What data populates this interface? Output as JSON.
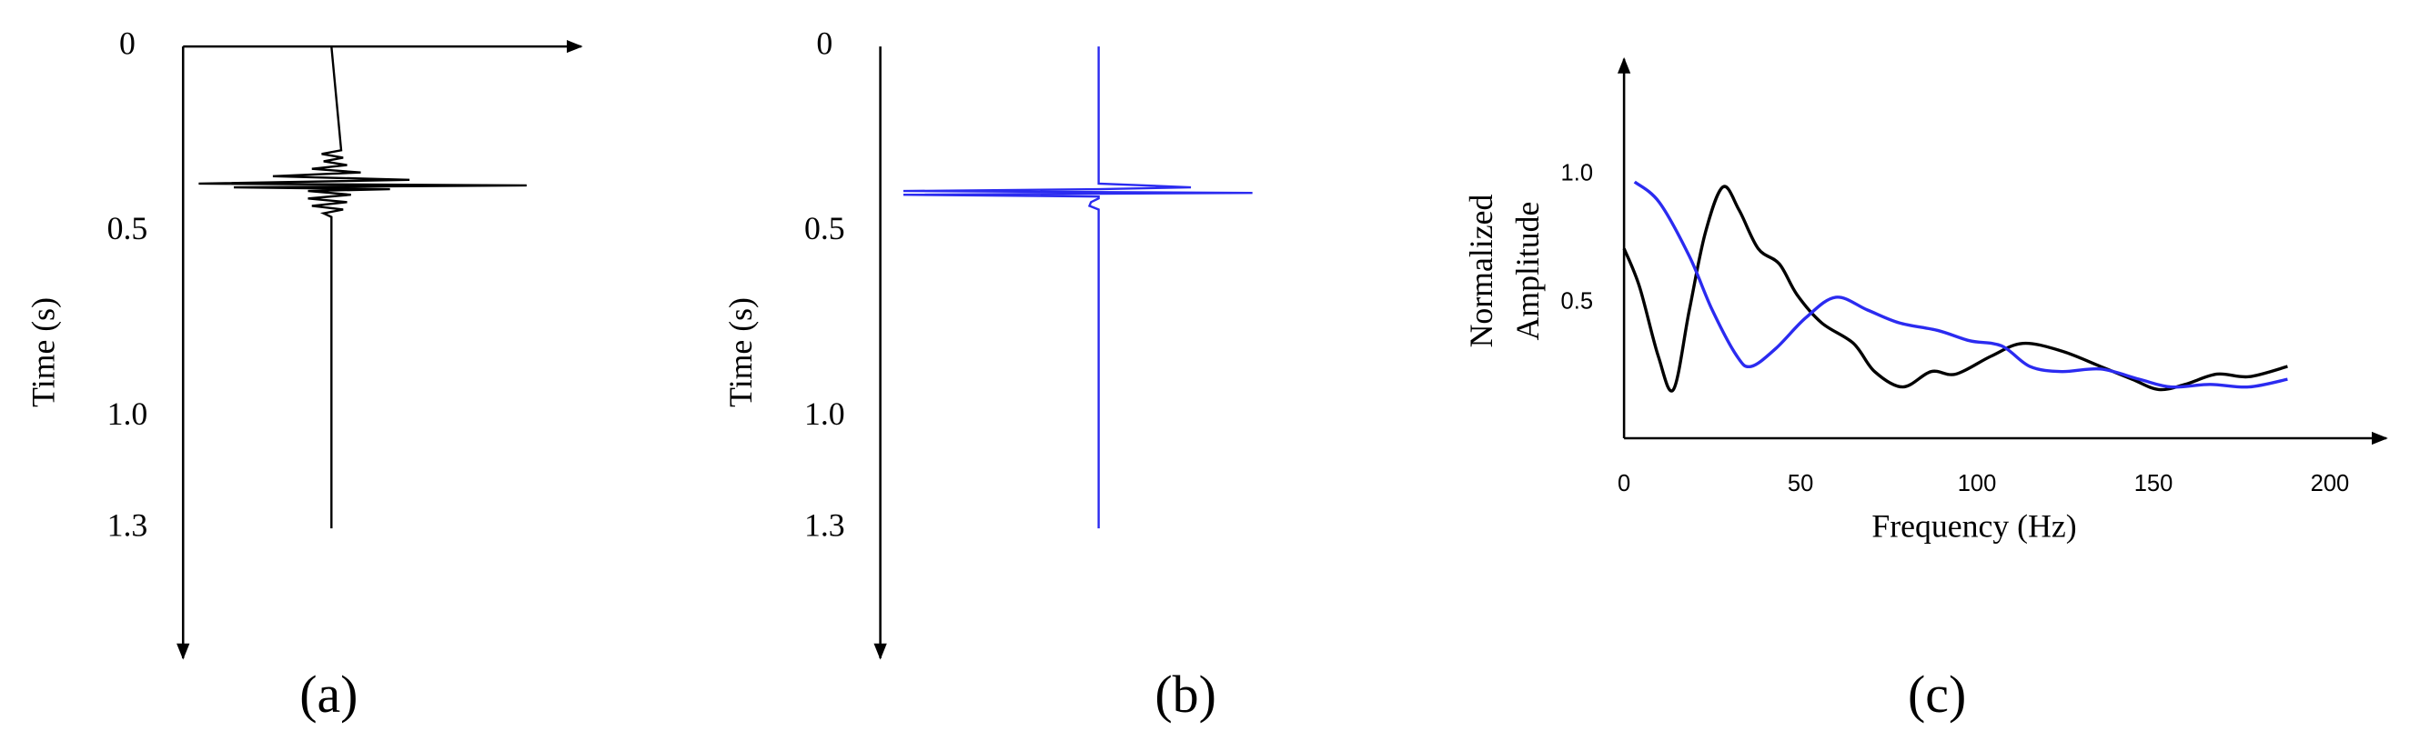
{
  "chart_data": [
    {
      "type": "trace",
      "caption": "(a)",
      "xlabel": "Time (s)",
      "top_axis": true,
      "color": "#000000",
      "xlim": [
        0,
        1.65
      ],
      "xticks": [
        0,
        0.5,
        {
          "value": 1,
          "label": "1.0"
        },
        1.3
      ],
      "ylim": [
        -0.76,
        1.28
      ],
      "x": [
        0,
        0.28,
        0.29,
        0.3,
        0.31,
        0.32,
        0.33,
        0.34,
        0.35,
        0.36,
        0.37,
        0.375,
        0.38,
        0.385,
        0.39,
        0.4,
        0.41,
        0.42,
        0.43,
        0.44,
        0.45,
        0.46,
        1.3
      ],
      "values": [
        0,
        0.05,
        -0.05,
        0.06,
        -0.04,
        0.08,
        -0.1,
        0.15,
        -0.3,
        0.4,
        -0.68,
        1,
        -0.5,
        0.3,
        -0.12,
        0.1,
        -0.12,
        0.08,
        -0.1,
        0.06,
        -0.04,
        0,
        0
      ]
    },
    {
      "type": "trace",
      "caption": "(b)",
      "xlabel": "Time (s)",
      "top_axis": false,
      "color": "#2b2bf0",
      "xlim": [
        0,
        1.65
      ],
      "xticks": [
        0,
        0.5,
        {
          "value": 1,
          "label": "1.0"
        },
        1.3
      ],
      "ylim": [
        -1.42,
        1.2
      ],
      "x": [
        0,
        0.37,
        0.38,
        0.385,
        0.39,
        0.395,
        0.4,
        0.405,
        0.41,
        0.42,
        0.43,
        0.44,
        0.45,
        1.3
      ],
      "values": [
        0,
        0,
        0.6,
        0,
        -1.27,
        1,
        -1.27,
        0,
        0,
        -0.05,
        -0.06,
        0,
        0,
        0
      ]
    },
    {
      "type": "line",
      "caption": "(c)",
      "xlabel": "Frequency (Hz)",
      "ylabel": [
        "Normalized",
        "Amplitude"
      ],
      "xlim": [
        0,
        216
      ],
      "xticks": [
        0,
        50,
        100,
        150,
        200
      ],
      "ylim": [
        -0.03,
        1.45
      ],
      "yticks": [
        0.5,
        {
          "value": 1,
          "label": "1.0"
        }
      ],
      "series": [
        {
          "color": "#000000",
          "x": [
            0,
            4.4,
            9.7,
            14,
            18.5,
            23,
            28,
            32.6,
            38,
            44,
            49,
            56,
            65,
            71,
            79,
            87,
            94,
            104,
            113,
            124,
            135,
            144,
            151.5,
            159,
            168,
            177,
            188
          ],
          "values": [
            0.71,
            0.56,
            0.29,
            0.16,
            0.47,
            0.77,
            0.95,
            0.86,
            0.71,
            0.65,
            0.53,
            0.42,
            0.34,
            0.23,
            0.17,
            0.23,
            0.22,
            0.29,
            0.34,
            0.31,
            0.25,
            0.2,
            0.16,
            0.18,
            0.22,
            0.21,
            0.25
          ]
        },
        {
          "color": "#2b2bf0",
          "x": [
            3,
            10,
            18.5,
            25,
            32,
            36,
            43,
            51.5,
            60,
            69,
            78,
            89,
            98,
            107,
            115,
            124,
            135,
            146,
            155,
            166,
            177,
            188
          ],
          "values": [
            0.97,
            0.89,
            0.68,
            0.47,
            0.29,
            0.25,
            0.32,
            0.44,
            0.52,
            0.47,
            0.42,
            0.39,
            0.35,
            0.33,
            0.25,
            0.23,
            0.24,
            0.2,
            0.17,
            0.18,
            0.17,
            0.2
          ]
        }
      ]
    }
  ]
}
